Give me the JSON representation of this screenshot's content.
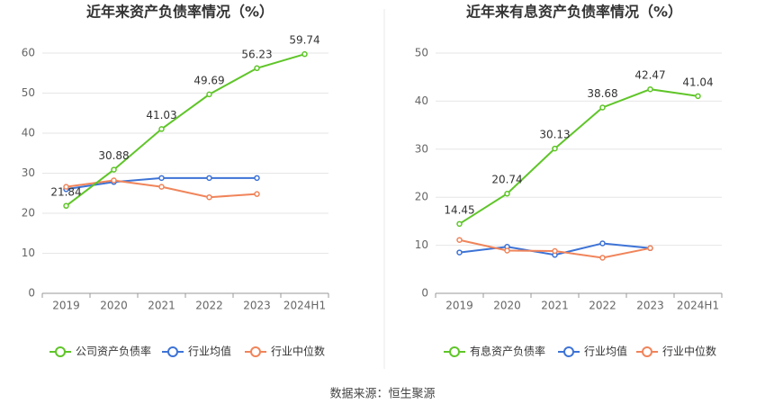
{
  "chart_data": [
    {
      "type": "line",
      "title": "近年来资产负债率情况（%）",
      "categories": [
        "2019",
        "2020",
        "2021",
        "2022",
        "2023",
        "2024H1"
      ],
      "series": [
        {
          "name": "公司资产负债率",
          "color": "#5fc528",
          "values": [
            21.84,
            30.88,
            41.03,
            49.69,
            56.23,
            59.74
          ],
          "data_labels": true
        },
        {
          "name": "行业均值",
          "color": "#3d73d6",
          "values": [
            26,
            27.8,
            28.8,
            28.8,
            28.8,
            null
          ]
        },
        {
          "name": "行业中位数",
          "color": "#f0845a",
          "values": [
            26.6,
            28.2,
            26.6,
            24,
            24.8,
            null
          ]
        }
      ],
      "ylim": [
        0,
        65
      ],
      "yticks": [
        0,
        10,
        20,
        30,
        40,
        50,
        60
      ],
      "grid": true,
      "legend": "bottom"
    },
    {
      "type": "line",
      "title": "近年来有息资产负债率情况（%）",
      "categories": [
        "2019",
        "2020",
        "2021",
        "2022",
        "2023",
        "2024H1"
      ],
      "series": [
        {
          "name": "有息资产负债率",
          "color": "#5fc528",
          "values": [
            14.45,
            20.74,
            30.13,
            38.68,
            42.47,
            41.04
          ],
          "data_labels": true
        },
        {
          "name": "行业均值",
          "color": "#3d73d6",
          "values": [
            8.5,
            9.7,
            8,
            10.4,
            9.4,
            null
          ]
        },
        {
          "name": "行业中位数",
          "color": "#f0845a",
          "values": [
            11.1,
            8.9,
            8.8,
            7.4,
            9.4,
            null
          ]
        }
      ],
      "ylim": [
        0,
        54
      ],
      "yticks": [
        0,
        10,
        20,
        30,
        40,
        50
      ],
      "grid": true,
      "legend": "bottom"
    }
  ],
  "source": "数据来源：恒生聚源"
}
